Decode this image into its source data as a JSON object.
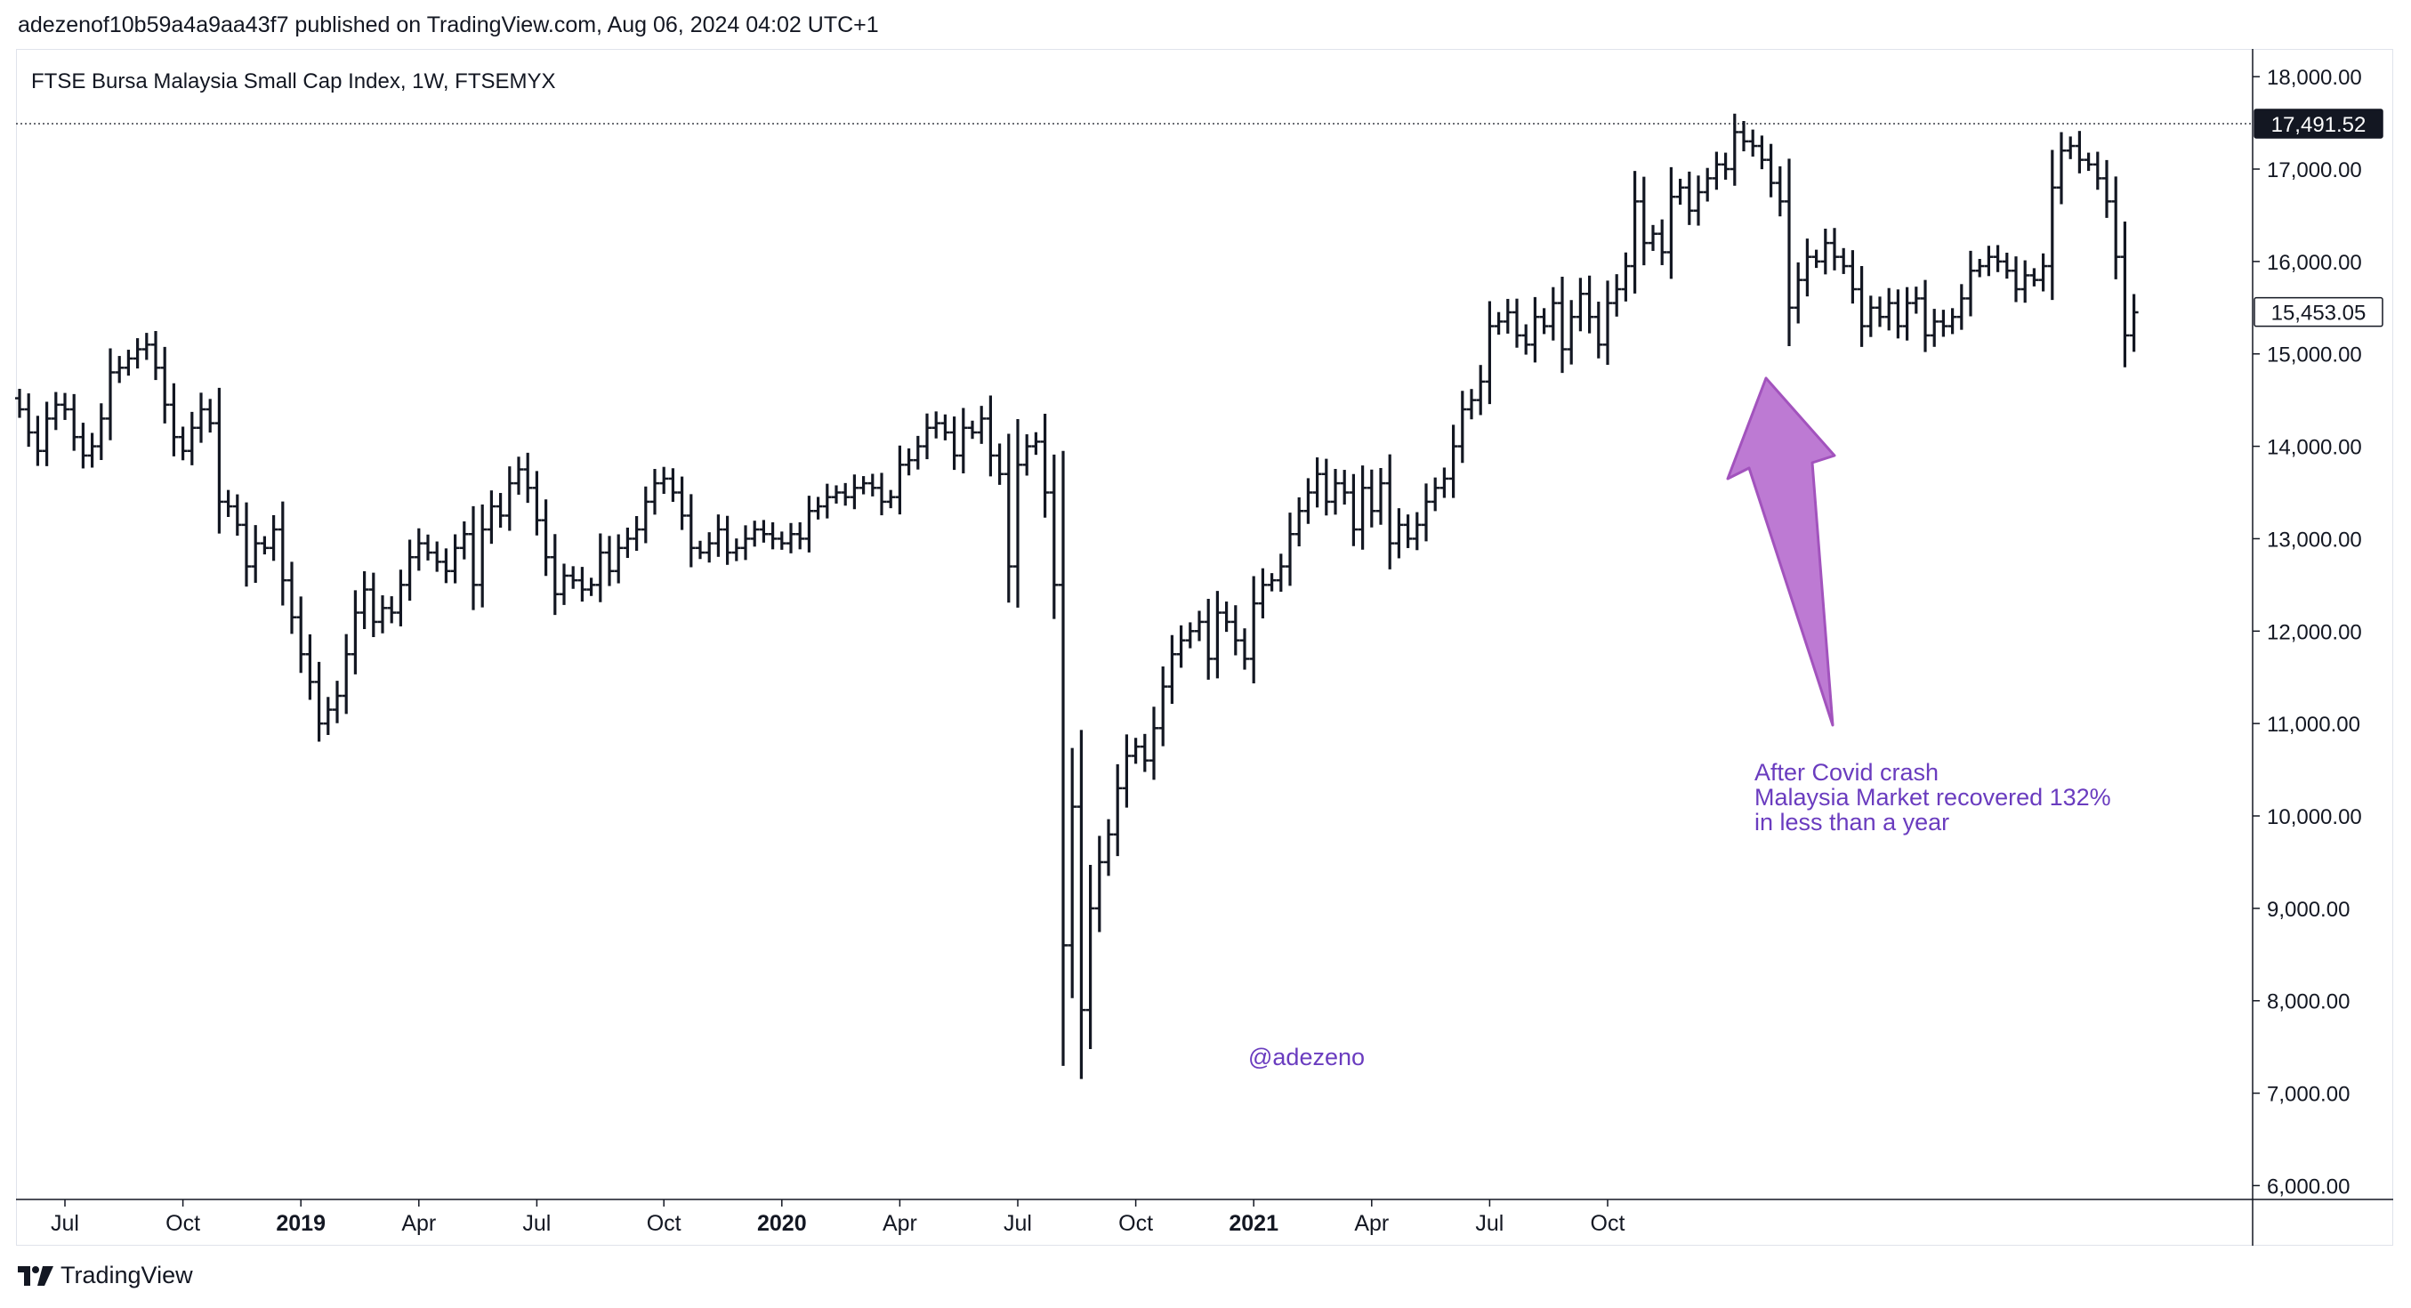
{
  "header": {
    "published": "adezenof10b59a4a9aa43f7 published on TradingView.com, Aug 06, 2024 04:02 UTC+1"
  },
  "footer": {
    "brand": "TradingView",
    "logo_icon": "tradingview-logo-icon"
  },
  "colors": {
    "bars": "#131722",
    "annotation": "#6a3cbf",
    "arrow_fill": "#b05cc8",
    "arrow_stroke": "#9b45b8",
    "axis": "#131722",
    "frame": "#e0e3eb"
  },
  "chart_data": {
    "type": "ohlc-bar",
    "title": "FTSE Bursa Malaysia Small Cap Index, 1W, FTSEMYX",
    "ylim": [
      5850,
      18300
    ],
    "y_ticks": [
      {
        "value": 6000,
        "label": "6,000.00"
      },
      {
        "value": 7000,
        "label": "7,000.00"
      },
      {
        "value": 8000,
        "label": "8,000.00"
      },
      {
        "value": 9000,
        "label": "9,000.00"
      },
      {
        "value": 10000,
        "label": "10,000.00"
      },
      {
        "value": 11000,
        "label": "11,000.00"
      },
      {
        "value": 12000,
        "label": "12,000.00"
      },
      {
        "value": 13000,
        "label": "13,000.00"
      },
      {
        "value": 14000,
        "label": "14,000.00"
      },
      {
        "value": 15000,
        "label": "15,000.00"
      },
      {
        "value": 16000,
        "label": "16,000.00"
      },
      {
        "value": 17000,
        "label": "17,000.00"
      },
      {
        "value": 18000,
        "label": "18,000.00"
      }
    ],
    "x_ticks": [
      {
        "bar": 5,
        "label": "Jul",
        "bold": false
      },
      {
        "bar": 18,
        "label": "Oct",
        "bold": false
      },
      {
        "bar": 31,
        "label": "2019",
        "bold": true
      },
      {
        "bar": 44,
        "label": "Apr",
        "bold": false
      },
      {
        "bar": 57,
        "label": "Jul",
        "bold": false
      },
      {
        "bar": 71,
        "label": "Oct",
        "bold": false
      },
      {
        "bar": 84,
        "label": "2020",
        "bold": true
      },
      {
        "bar": 97,
        "label": "Apr",
        "bold": false
      },
      {
        "bar": 110,
        "label": "Jul",
        "bold": false
      },
      {
        "bar": 123,
        "label": "Oct",
        "bold": false
      },
      {
        "bar": 136,
        "label": "2021",
        "bold": true
      },
      {
        "bar": 149,
        "label": "Apr",
        "bold": false
      },
      {
        "bar": 162,
        "label": "Jul",
        "bold": false
      },
      {
        "bar": 175,
        "label": "Oct",
        "bold": false
      }
    ],
    "price_labels": [
      {
        "value": 17491.52,
        "label": "17,491.52",
        "style": "dark",
        "dotted_line": true
      },
      {
        "value": 15453.05,
        "label": "15,453.05",
        "style": "outline",
        "dotted_line": false
      }
    ],
    "annotations": [
      {
        "name": "covid-recovery-note",
        "lines": [
          "After Covid crash",
          "Malaysia Market recovered 132%",
          "in less than a year"
        ]
      },
      {
        "name": "author-watermark",
        "lines": [
          "@adezeno"
        ]
      }
    ],
    "closes": [
      14400,
      14150,
      13950,
      14300,
      14450,
      14400,
      14100,
      13900,
      14000,
      14300,
      14800,
      14850,
      14950,
      15050,
      15100,
      14850,
      14450,
      14100,
      13950,
      14200,
      14400,
      14250,
      13400,
      13350,
      13150,
      12700,
      12950,
      12900,
      13100,
      12550,
      12150,
      11750,
      11450,
      11000,
      11150,
      11300,
      11750,
      12200,
      12450,
      12100,
      12250,
      12200,
      12500,
      12800,
      12950,
      12850,
      12750,
      12650,
      12900,
      13050,
      12500,
      13100,
      13350,
      13250,
      13600,
      13750,
      13550,
      13200,
      12800,
      12400,
      12600,
      12550,
      12450,
      12500,
      12850,
      12650,
      12900,
      13000,
      13100,
      13400,
      13600,
      13650,
      13500,
      13250,
      12900,
      12850,
      12950,
      13100,
      12850,
      12900,
      13000,
      13100,
      13050,
      13000,
      12950,
      13050,
      13000,
      13300,
      13350,
      13450,
      13500,
      13450,
      13550,
      13600,
      13550,
      13400,
      13450,
      13800,
      13850,
      14000,
      14200,
      14250,
      14150,
      13900,
      14200,
      14150,
      14300,
      13900,
      13700,
      12700,
      13800,
      14000,
      14050,
      13500,
      12500,
      8600,
      10100,
      7900,
      9000,
      9500,
      9800,
      10300,
      10650,
      10750,
      10600,
      10950,
      11400,
      11750,
      11900,
      12000,
      12100,
      11700,
      12200,
      12100,
      11900,
      11700,
      12300,
      12500,
      12550,
      12700,
      13050,
      13300,
      13500,
      13700,
      13400,
      13600,
      13500,
      13100,
      13550,
      13300,
      13600,
      12950,
      13150,
      13000,
      13150,
      13400,
      13550,
      13650,
      14000,
      14400,
      14500,
      14700,
      15300,
      15350,
      15450,
      15200,
      15100,
      15400,
      15300,
      15550,
      15050,
      15400,
      15650,
      15400,
      15100,
      15550,
      15700,
      15950,
      16650,
      16200,
      16300,
      16100,
      16700,
      16800,
      16550,
      16750,
      16900,
      17050,
      17000,
      17400,
      17300,
      17250,
      17100,
      16850,
      16650,
      15500,
      15800,
      16050,
      16000,
      16200,
      16050,
      15950,
      15700,
      15300,
      15500,
      15400,
      15550,
      15300,
      15550,
      15600,
      15200,
      15350,
      15300,
      15400,
      15600,
      15900,
      15950,
      16050,
      16000,
      15900,
      15700,
      15850,
      15800,
      15950,
      16800,
      17200,
      17250,
      17100,
      17050,
      16900,
      16650,
      16050,
      15200,
      15450
    ]
  }
}
